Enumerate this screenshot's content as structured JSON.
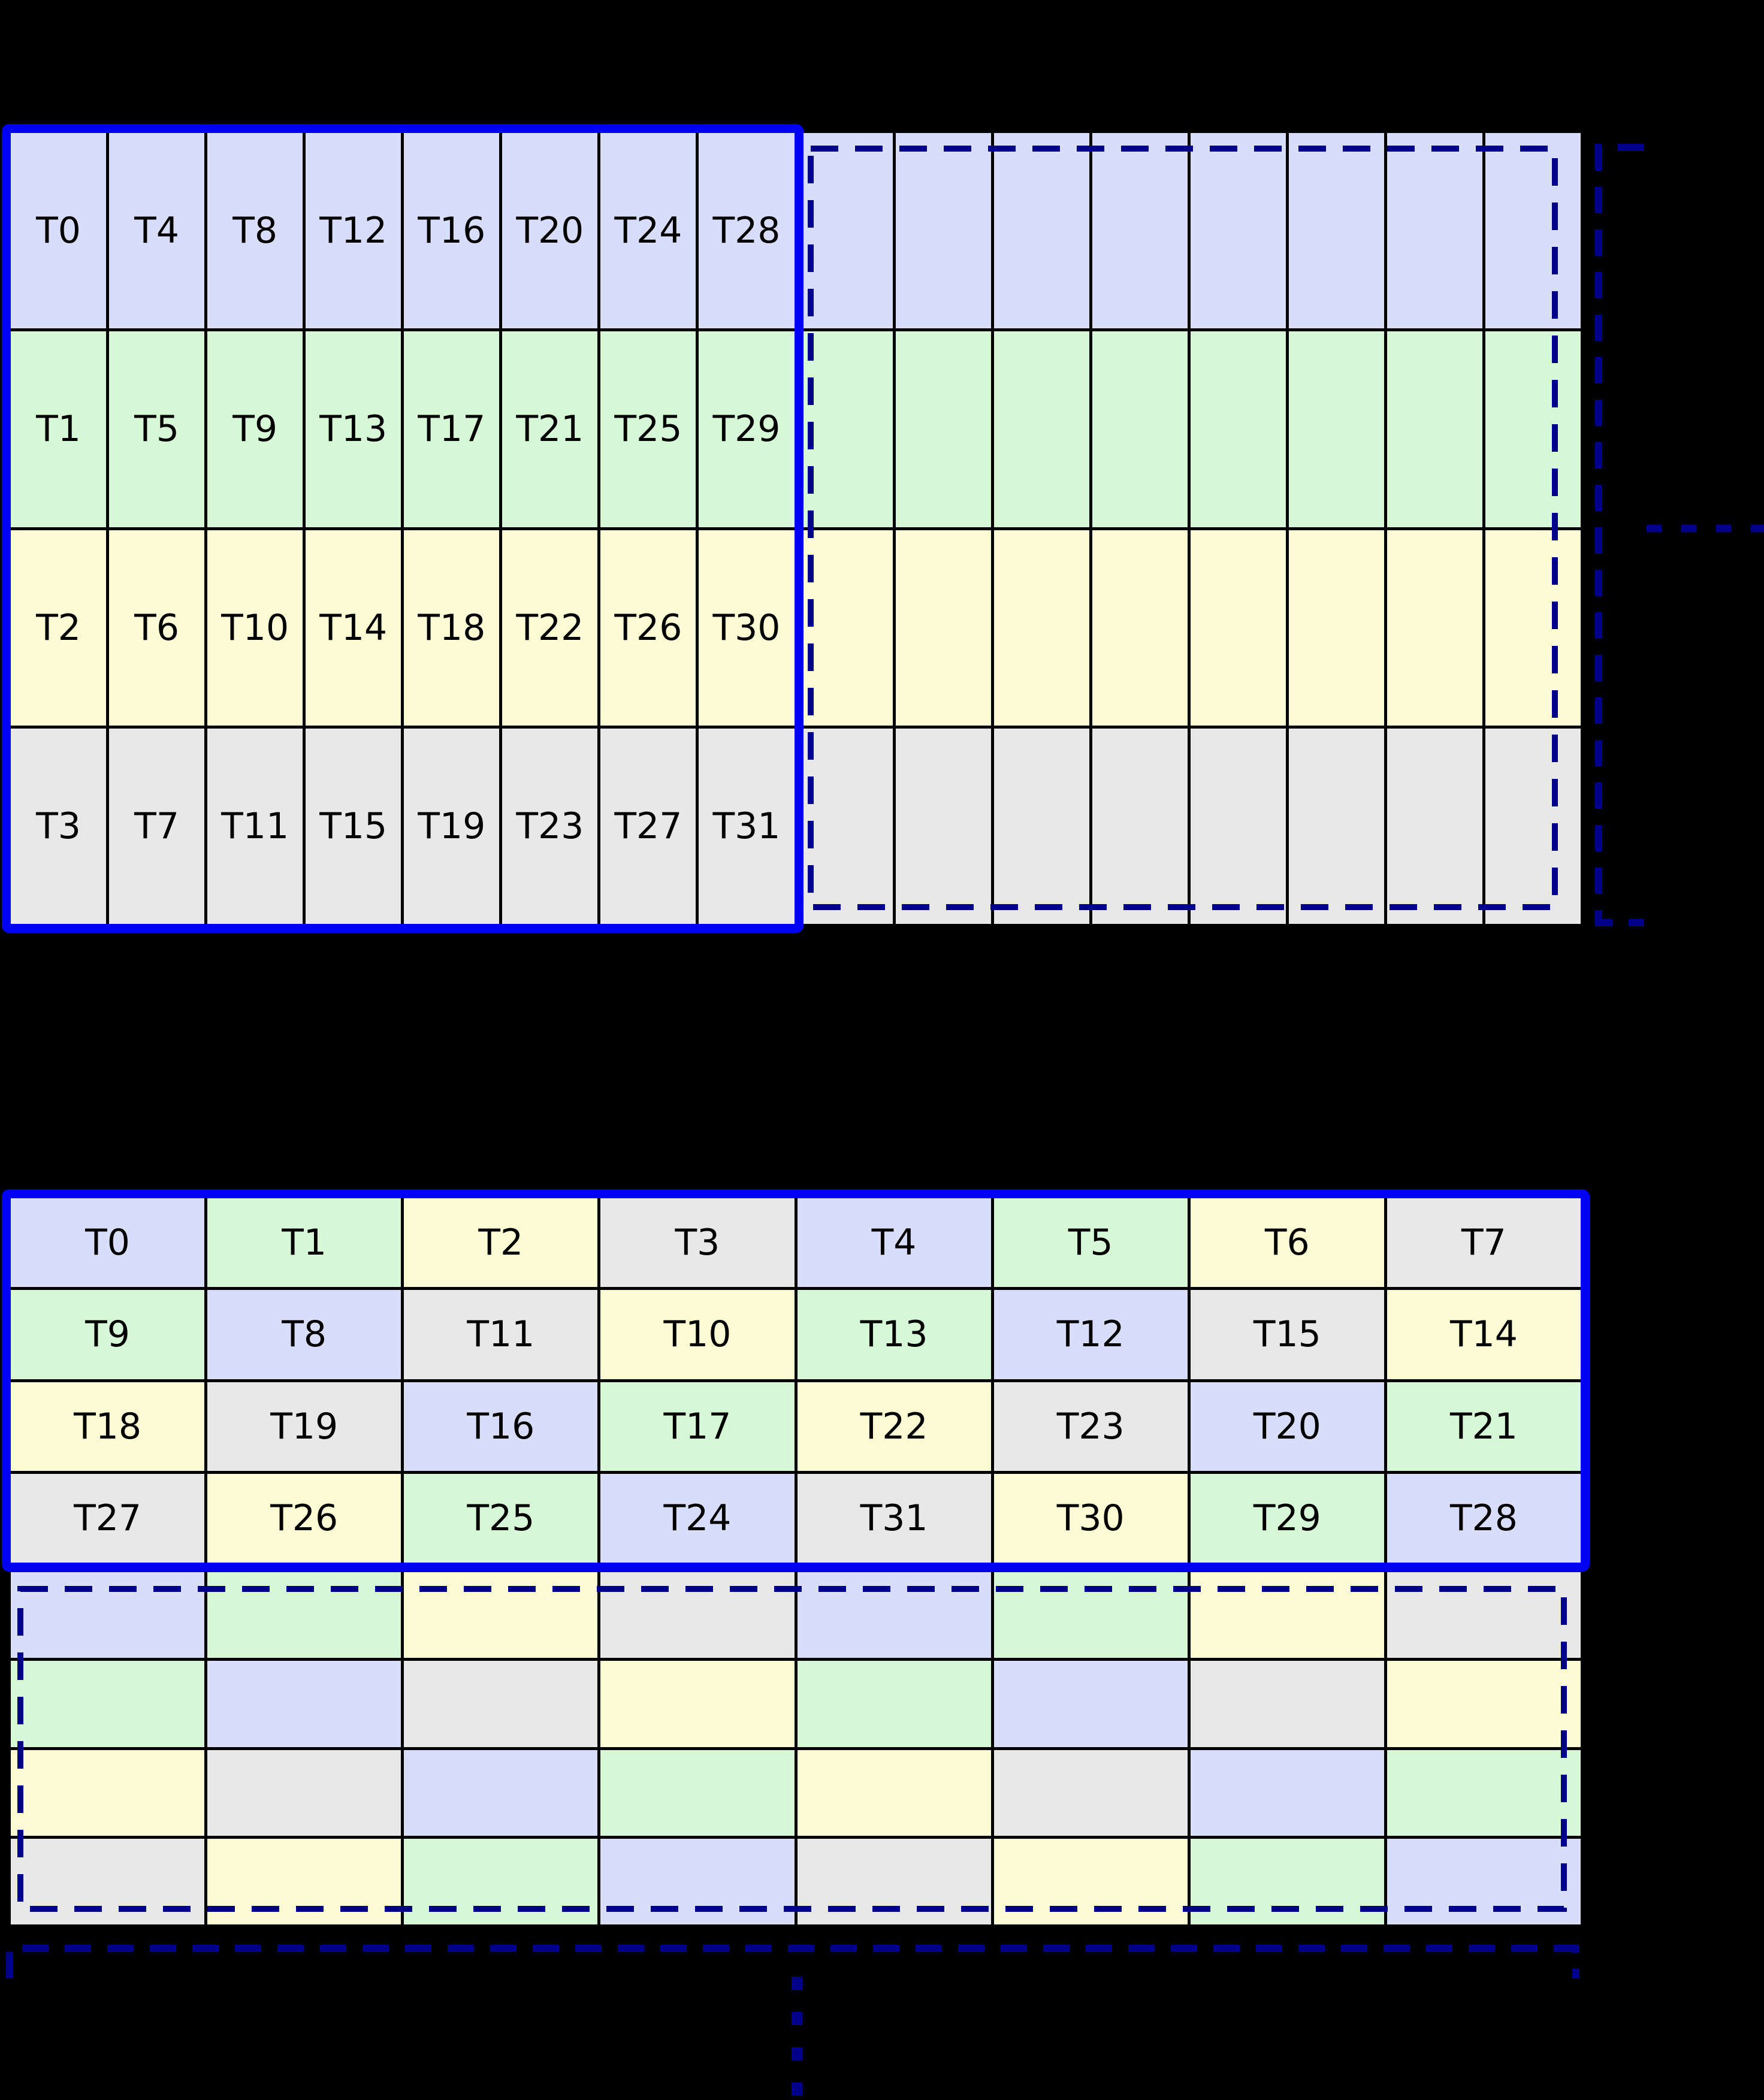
{
  "palette": {
    "background": "#000000",
    "solid_border": "#0000f5",
    "dashed_border": "#00008b",
    "cell_border": "#000000",
    "text": "#000000",
    "blue": "#d8defa",
    "green": "#d6f8d6",
    "yellow": "#fcfcd4",
    "gray": "#e8e8e9"
  },
  "color_keys": [
    "blue",
    "green",
    "yellow",
    "gray"
  ],
  "top_grid": {
    "rows": 4,
    "cols": 16,
    "row_colors": [
      0,
      1,
      2,
      3
    ],
    "labels": [
      [
        "T0",
        "T4",
        "T8",
        "T12",
        "T16",
        "T20",
        "T24",
        "T28"
      ],
      [
        "T1",
        "T5",
        "T9",
        "T13",
        "T17",
        "T21",
        "T25",
        "T29"
      ],
      [
        "T2",
        "T6",
        "T10",
        "T14",
        "T18",
        "T22",
        "T26",
        "T30"
      ],
      [
        "T3",
        "T7",
        "T11",
        "T15",
        "T19",
        "T23",
        "T27",
        "T31"
      ]
    ]
  },
  "bottom_grid_labeled": {
    "rows": 4,
    "cols": 8,
    "cell_colors": [
      [
        0,
        1,
        2,
        3,
        0,
        1,
        2,
        3
      ],
      [
        1,
        0,
        3,
        2,
        1,
        0,
        3,
        2
      ],
      [
        2,
        3,
        0,
        1,
        2,
        3,
        0,
        1
      ],
      [
        3,
        2,
        1,
        0,
        3,
        2,
        1,
        0
      ]
    ],
    "labels": [
      [
        "T0",
        "T1",
        "T2",
        "T3",
        "T4",
        "T5",
        "T6",
        "T7"
      ],
      [
        "T9",
        "T8",
        "T11",
        "T10",
        "T13",
        "T12",
        "T15",
        "T14"
      ],
      [
        "T18",
        "T19",
        "T16",
        "T17",
        "T22",
        "T23",
        "T20",
        "T21"
      ],
      [
        "T27",
        "T26",
        "T25",
        "T24",
        "T31",
        "T30",
        "T29",
        "T28"
      ]
    ]
  },
  "bottom_grid_unlabeled": {
    "rows": 4,
    "cols": 8,
    "cell_colors": [
      [
        0,
        1,
        2,
        3,
        0,
        1,
        2,
        3
      ],
      [
        1,
        0,
        3,
        2,
        1,
        0,
        3,
        2
      ],
      [
        2,
        3,
        0,
        1,
        2,
        3,
        0,
        1
      ],
      [
        3,
        2,
        1,
        0,
        3,
        2,
        1,
        0
      ]
    ],
    "labels": []
  }
}
